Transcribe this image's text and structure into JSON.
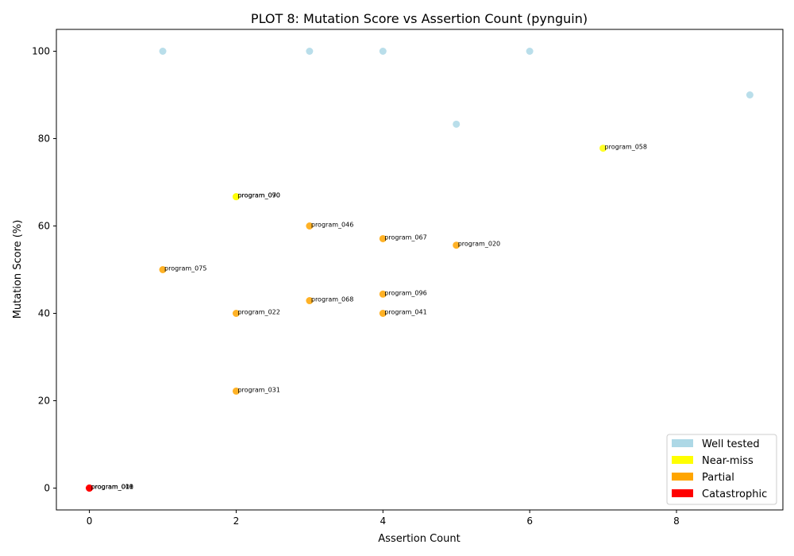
{
  "chart_data": {
    "type": "scatter",
    "title": "PLOT 8: Mutation Score vs Assertion Count (pynguin)",
    "xlabel": "Assertion Count",
    "ylabel": "Mutation Score (%)",
    "xlim": [
      -0.45,
      9.45
    ],
    "ylim": [
      -5,
      105
    ],
    "xticks": [
      0,
      2,
      4,
      6,
      8
    ],
    "yticks": [
      0,
      20,
      40,
      60,
      80,
      100
    ],
    "legend_position": "lower-right",
    "categories": [
      {
        "key": "well",
        "label": "Well tested",
        "color": "#add8e6"
      },
      {
        "key": "near",
        "label": "Near-miss",
        "color": "#ffff00"
      },
      {
        "key": "partial",
        "label": "Partial",
        "color": "#ffa500"
      },
      {
        "key": "cat",
        "label": "Catastrophic",
        "color": "#ff0000"
      }
    ],
    "points": [
      {
        "x": 1,
        "y": 100,
        "cat": "well",
        "label": ""
      },
      {
        "x": 3,
        "y": 100,
        "cat": "well",
        "label": ""
      },
      {
        "x": 4,
        "y": 100,
        "cat": "well",
        "label": ""
      },
      {
        "x": 6,
        "y": 100,
        "cat": "well",
        "label": ""
      },
      {
        "x": 9,
        "y": 90,
        "cat": "well",
        "label": ""
      },
      {
        "x": 5,
        "y": 83.3,
        "cat": "well",
        "label": ""
      },
      {
        "x": 7,
        "y": 77.8,
        "cat": "near",
        "label": "program_058"
      },
      {
        "x": 2,
        "y": 66.7,
        "cat": "near",
        "label": "program_090"
      },
      {
        "x": 2,
        "y": 66.7,
        "cat": "near",
        "label": "program_070"
      },
      {
        "x": 3,
        "y": 60,
        "cat": "partial",
        "label": "program_046"
      },
      {
        "x": 4,
        "y": 57.1,
        "cat": "partial",
        "label": "program_067"
      },
      {
        "x": 5,
        "y": 55.6,
        "cat": "partial",
        "label": "program_020"
      },
      {
        "x": 1,
        "y": 50,
        "cat": "partial",
        "label": "program_075"
      },
      {
        "x": 4,
        "y": 44.4,
        "cat": "partial",
        "label": "program_096"
      },
      {
        "x": 3,
        "y": 42.9,
        "cat": "partial",
        "label": "program_068"
      },
      {
        "x": 2,
        "y": 40,
        "cat": "partial",
        "label": "program_022"
      },
      {
        "x": 4,
        "y": 40,
        "cat": "partial",
        "label": "program_041"
      },
      {
        "x": 2,
        "y": 22.2,
        "cat": "partial",
        "label": "program_031"
      },
      {
        "x": 0,
        "y": 0,
        "cat": "cat",
        "label": "program_001"
      },
      {
        "x": 0,
        "y": 0,
        "cat": "cat",
        "label": "program_010"
      },
      {
        "x": 0,
        "y": 0,
        "cat": "cat",
        "label": "program_018"
      }
    ]
  }
}
